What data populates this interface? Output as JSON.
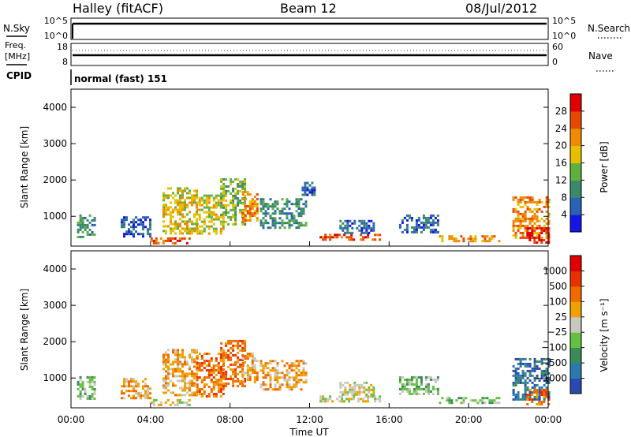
{
  "header": {
    "station": "Halley (fitACF)",
    "beam": "Beam 12",
    "date": "08/Jul/2012"
  },
  "top_panels": {
    "nsky_label": "N.Sky",
    "nsky_ticks": [
      "10^5",
      "10^0"
    ],
    "nsearch_label": "N.Search",
    "nsearch_ticks": [
      "10^5",
      "10^0"
    ],
    "freq_label_1": "Freq.",
    "freq_label_2": "[MHz]",
    "freq_ticks": [
      "18",
      "8"
    ],
    "nave_label": "Nave",
    "nave_ticks": [
      "60",
      "0"
    ],
    "cpid_label": "CPID",
    "cpid_text": "normal (fast) 151"
  },
  "colors": {
    "power_scale": [
      "#1515e6",
      "#2a62b5",
      "#3a8a6a",
      "#60b040",
      "#e6c000",
      "#f08a00",
      "#e84800",
      "#e00000"
    ],
    "velocity_scale": [
      "#2a4ab0",
      "#2a7ab0",
      "#3a8a5a",
      "#66c040",
      "#c8c8c0",
      "#f0a000",
      "#f06a00",
      "#e83000",
      "#e00000"
    ],
    "ground_scatter": "#b4b4a8"
  },
  "chart_data": [
    {
      "type": "heatmap",
      "panel": "power",
      "ylabel": "Slant Range [km]",
      "xlabel": "",
      "x_ticks": [],
      "y_ticks": [
        "4000",
        "3000",
        "2000",
        "1000"
      ],
      "ylim": [
        180,
        4500
      ],
      "xlim_hours": [
        0,
        24
      ],
      "colorbar_label": "Power [dB]",
      "colorbar_ticks": [
        "28",
        "24",
        "20",
        "16",
        "12",
        "8",
        "4"
      ],
      "regions": [
        {
          "x": [
            0.3,
            1.2
          ],
          "y": [
            450,
            1050
          ],
          "level": 2
        },
        {
          "x": [
            2.5,
            4.0
          ],
          "y": [
            450,
            1000
          ],
          "level": 1
        },
        {
          "x": [
            4.6,
            6.3
          ],
          "y": [
            550,
            1800
          ],
          "level": 4
        },
        {
          "x": [
            6.3,
            7.7
          ],
          "y": [
            500,
            1600
          ],
          "level": 4
        },
        {
          "x": [
            7.5,
            8.7
          ],
          "y": [
            800,
            2050
          ],
          "level": 3
        },
        {
          "x": [
            8.6,
            9.4
          ],
          "y": [
            900,
            1700
          ],
          "level": 5
        },
        {
          "x": [
            9.5,
            11.8
          ],
          "y": [
            700,
            1500
          ],
          "level": 2
        },
        {
          "x": [
            11.6,
            12.3
          ],
          "y": [
            1600,
            1950
          ],
          "level": 1
        },
        {
          "x": [
            12.5,
            15.5
          ],
          "y": [
            350,
            520
          ],
          "level": 6
        },
        {
          "x": [
            13.5,
            15.2
          ],
          "y": [
            550,
            900
          ],
          "level": 1
        },
        {
          "x": [
            16.5,
            18.5
          ],
          "y": [
            550,
            1050
          ],
          "level": 1
        },
        {
          "x": [
            18.5,
            21.5
          ],
          "y": [
            320,
            480
          ],
          "level": 5
        },
        {
          "x": [
            22.2,
            24.0
          ],
          "y": [
            400,
            1550
          ],
          "level": 5
        },
        {
          "x": [
            22.9,
            24.0
          ],
          "y": [
            250,
            700
          ],
          "level": 7
        },
        {
          "x": [
            4.0,
            6.0
          ],
          "y": [
            250,
            420
          ],
          "level": 6
        }
      ]
    },
    {
      "type": "heatmap",
      "panel": "velocity",
      "ylabel": "Slant Range [km]",
      "xlabel": "Time UT",
      "x_ticks": [
        "00:00",
        "04:00",
        "08:00",
        "12:00",
        "16:00",
        "20:00",
        "00:00"
      ],
      "y_ticks": [
        "4000",
        "3000",
        "2000",
        "1000"
      ],
      "ylim": [
        180,
        4500
      ],
      "xlim_hours": [
        0,
        24
      ],
      "colorbar_label": "Velocity [m s⁻¹]",
      "colorbar_ticks": [
        "1000",
        "500",
        "100",
        "25",
        "−25",
        "−100",
        "−500",
        "−1000"
      ],
      "regions": [
        {
          "x": [
            0.3,
            1.2
          ],
          "y": [
            450,
            1050
          ],
          "level": 3
        },
        {
          "x": [
            2.5,
            4.0
          ],
          "y": [
            450,
            1000
          ],
          "level": 5
        },
        {
          "x": [
            4.6,
            6.3
          ],
          "y": [
            550,
            1800
          ],
          "level": 5
        },
        {
          "x": [
            6.3,
            7.7
          ],
          "y": [
            500,
            1700
          ],
          "level": 6
        },
        {
          "x": [
            7.5,
            8.7
          ],
          "y": [
            800,
            2050
          ],
          "level": 6
        },
        {
          "x": [
            8.6,
            9.4
          ],
          "y": [
            900,
            1700
          ],
          "level": 5
        },
        {
          "x": [
            9.5,
            11.8
          ],
          "y": [
            700,
            1500
          ],
          "level": 5
        },
        {
          "x": [
            12.5,
            15.5
          ],
          "y": [
            350,
            520
          ],
          "level": 4
        },
        {
          "x": [
            13.5,
            15.2
          ],
          "y": [
            550,
            900
          ],
          "level": 4
        },
        {
          "x": [
            16.5,
            18.5
          ],
          "y": [
            550,
            1050
          ],
          "level": 3
        },
        {
          "x": [
            18.5,
            21.5
          ],
          "y": [
            320,
            480
          ],
          "level": 3
        },
        {
          "x": [
            22.2,
            24.0
          ],
          "y": [
            400,
            1550
          ],
          "level": 1
        },
        {
          "x": [
            22.9,
            24.0
          ],
          "y": [
            250,
            700
          ],
          "level": 6
        },
        {
          "x": [
            4.0,
            6.0
          ],
          "y": [
            250,
            420
          ],
          "level": 4
        }
      ]
    }
  ]
}
